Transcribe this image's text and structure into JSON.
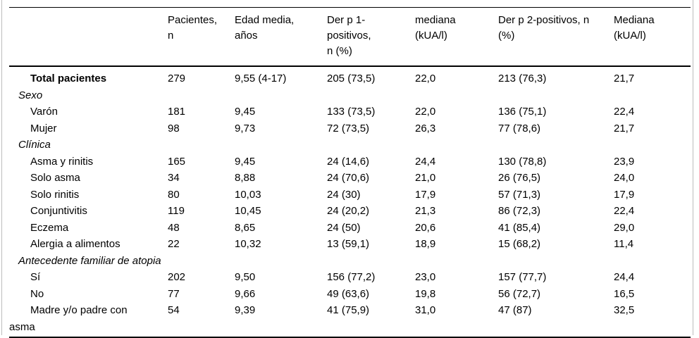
{
  "table": {
    "columns": [
      {
        "label": ""
      },
      {
        "label": "Pacientes, n"
      },
      {
        "label": "Edad media, años"
      },
      {
        "label": "Der p 1-positivos, n (%)"
      },
      {
        "label": "mediana (kUA/l)"
      },
      {
        "label": "Der p 2-positivos, n (%)"
      },
      {
        "label": "Mediana (kUA/l)"
      }
    ],
    "rows": [
      {
        "type": "total",
        "label": "Total pacientes",
        "values": [
          "279",
          "9,55 (4-17)",
          "205 (73,5)",
          "22,0",
          "213 (76,3)",
          "21,7"
        ]
      },
      {
        "type": "section",
        "label": "Sexo"
      },
      {
        "type": "item",
        "label": "Varón",
        "values": [
          "181",
          "9,45",
          "133 (73,5)",
          "22,0",
          "136 (75,1)",
          "22,4"
        ]
      },
      {
        "type": "item",
        "label": "Mujer",
        "values": [
          "98",
          "9,73",
          "72 (73,5)",
          "26,3",
          "77 (78,6)",
          "21,7"
        ]
      },
      {
        "type": "section",
        "label": "Clínica"
      },
      {
        "type": "item",
        "label": "Asma y rinitis",
        "values": [
          "165",
          "9,45",
          "24 (14,6)",
          "24,4",
          "130 (78,8)",
          "23,9"
        ]
      },
      {
        "type": "item",
        "label": "Solo asma",
        "values": [
          "34",
          "8,88",
          "24 (70,6)",
          "21,0",
          "26 (76,5)",
          "24,0"
        ]
      },
      {
        "type": "item",
        "label": "Solo rinitis",
        "values": [
          "80",
          "10,03",
          "24 (30)",
          "17,9",
          "57 (71,3)",
          "17,9"
        ]
      },
      {
        "type": "item",
        "label": "Conjuntivitis",
        "values": [
          "119",
          "10,45",
          "24 (20,2)",
          "21,3",
          "86 (72,3)",
          "22,4"
        ]
      },
      {
        "type": "item",
        "label": "Eczema",
        "values": [
          "48",
          "8,65",
          "24 (50)",
          "20,6",
          "41 (85,4)",
          "29,0"
        ]
      },
      {
        "type": "item",
        "label": "Alergia a alimentos",
        "values": [
          "22",
          "10,32",
          "13 (59,1)",
          "18,9",
          "15 (68,2)",
          "11,4"
        ]
      },
      {
        "type": "section",
        "label": "Antecedente familiar de atopia"
      },
      {
        "type": "item",
        "label": "Sí",
        "values": [
          "202",
          "9,50",
          "156 (77,2)",
          "23,0",
          "157 (77,7)",
          "24,4"
        ]
      },
      {
        "type": "item",
        "label": "No",
        "values": [
          "77",
          "9,66",
          "49 (63,6)",
          "19,8",
          "56 (72,7)",
          "16,5"
        ]
      },
      {
        "type": "item",
        "label": "Madre y/o padre con asma",
        "values": [
          "54",
          "9,39",
          "41 (75,9)",
          "31,0",
          "47 (87)",
          "32,5"
        ]
      }
    ]
  },
  "colors": {
    "rule": "#000000",
    "outer_border": "#bdbdbd",
    "text": "#000000",
    "background": "#ffffff"
  }
}
